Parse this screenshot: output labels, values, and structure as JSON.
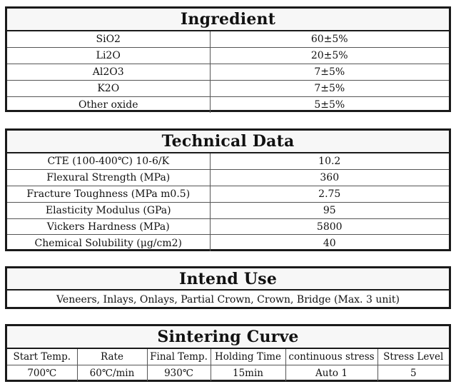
{
  "ingredient": {
    "title": "Ingredient",
    "rows": [
      {
        "name": "SiO2",
        "value": "60±5%"
      },
      {
        "name": "Li2O",
        "value": "20±5%"
      },
      {
        "name": "Al2O3",
        "value": "7±5%"
      },
      {
        "name": "K2O",
        "value": "7±5%"
      },
      {
        "name": "Other oxide",
        "value": "5±5%"
      }
    ]
  },
  "technical": {
    "title": "Technical Data",
    "rows": [
      {
        "name": "CTE (100-400℃) 10-6/K",
        "value": "10.2"
      },
      {
        "name": "Flexural Strength (MPa)",
        "value": "360"
      },
      {
        "name": "Fracture Toughness (MPa m0.5)",
        "value": "2.75"
      },
      {
        "name": "Elasticity Modulus (GPa)",
        "value": "95"
      },
      {
        "name": "Vickers Hardness (MPa)",
        "value": "5800"
      },
      {
        "name": "Chemical Solubility (μg/cm2)",
        "value": "40"
      }
    ]
  },
  "intend_use": {
    "title": "Intend Use",
    "text": "Veneers, Inlays, Onlays, Partial Crown, Crown, Bridge (Max. 3 unit)"
  },
  "sintering": {
    "title": "Sintering Curve",
    "headers": [
      "Start Temp.",
      "Rate",
      "Final Temp.",
      "Holding Time",
      "continuous stress",
      "Stress Level"
    ],
    "values": [
      "700℃",
      "60℃/min",
      "930℃",
      "15min",
      "Auto 1",
      "5"
    ]
  }
}
